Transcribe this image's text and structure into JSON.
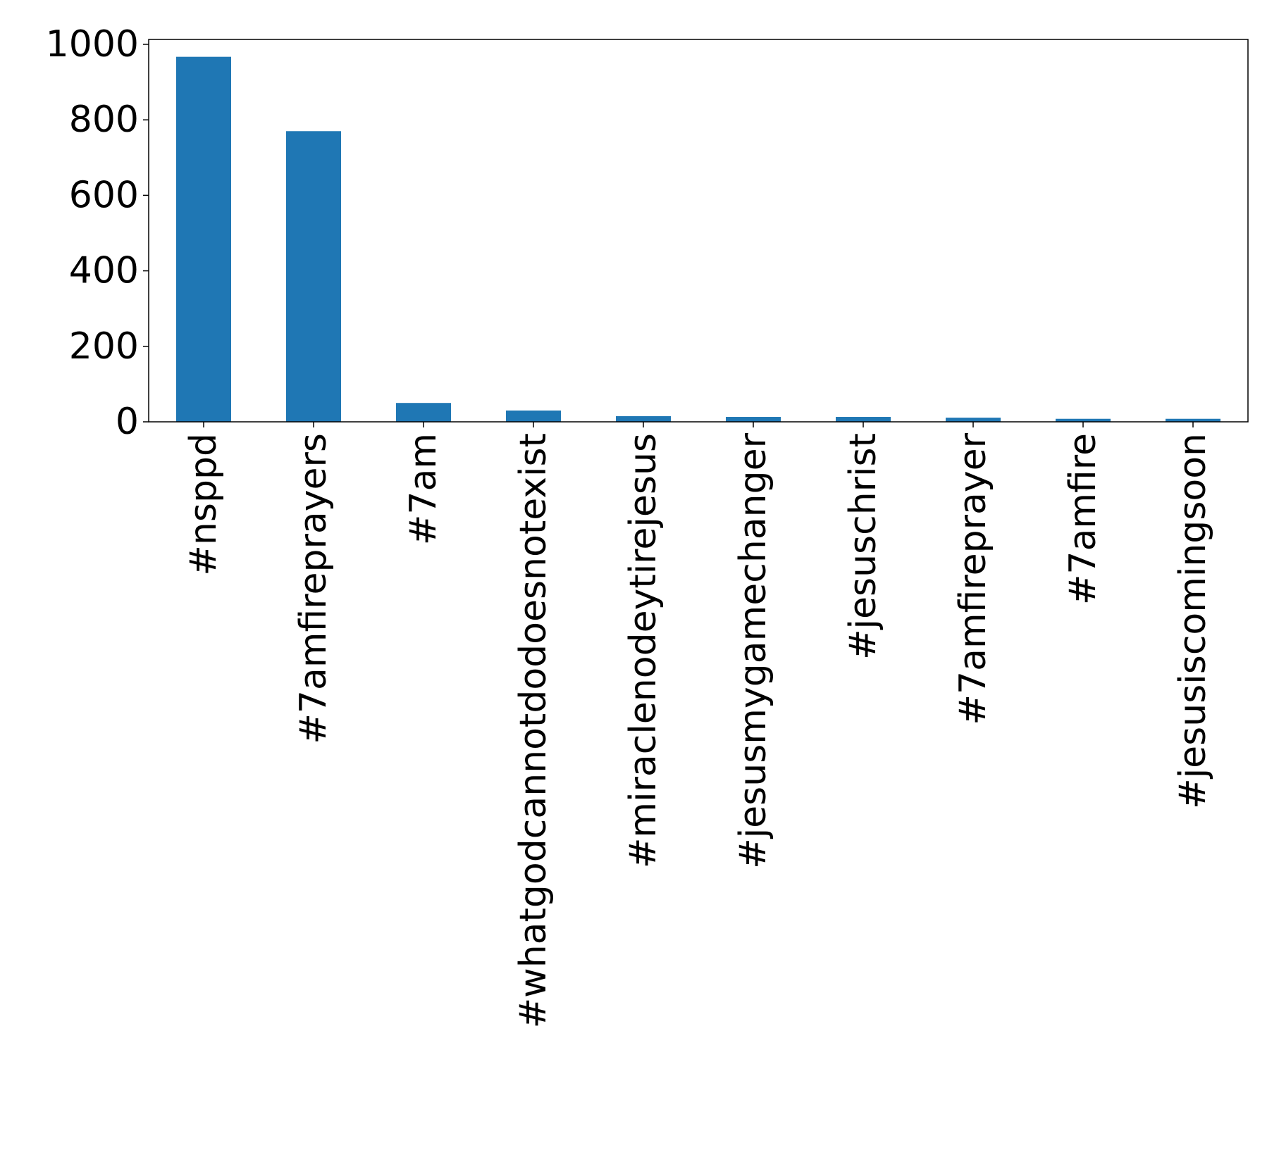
{
  "chart_data": {
    "type": "bar",
    "title": "",
    "xlabel": "",
    "ylabel": "",
    "categories": [
      "#nsppd",
      "#7amfireprayers",
      "#7am",
      "#whatgodcannotdodoesnotexist",
      "#miraclenodeytirejesus",
      "#jesusmygamechanger",
      "#jesuschrist",
      "#7amfireprayer",
      "#7amfire",
      "#jesusiscomingsoon"
    ],
    "values": [
      967,
      770,
      50,
      30,
      15,
      13,
      13,
      11,
      8,
      8
    ],
    "ylim": [
      0,
      1013
    ],
    "yticks": [
      0,
      200,
      400,
      600,
      800,
      1000
    ],
    "grid": false,
    "legend": "none",
    "bar_color": "#1f77b4"
  }
}
